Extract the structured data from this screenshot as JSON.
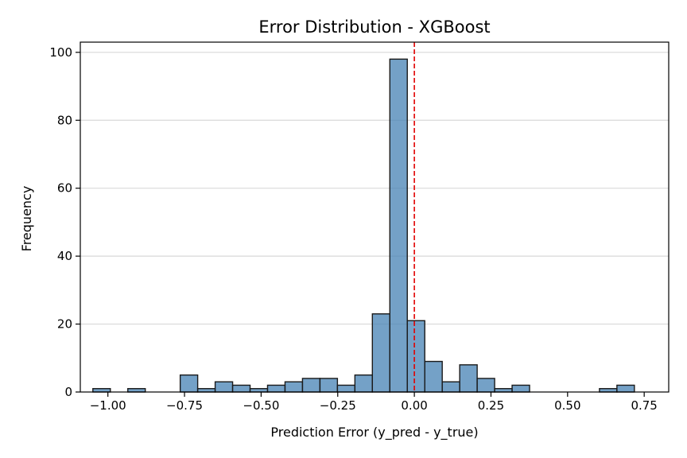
{
  "chart_data": {
    "type": "histogram",
    "title": "Error Distribution - XGBoost",
    "xlabel": "Prediction Error (y_pred - y_true)",
    "ylabel": "Frequency",
    "xlim": [
      -1.09,
      0.83
    ],
    "ylim": [
      0,
      103
    ],
    "grid": "y",
    "legend": "none",
    "bar_color": "#4682b4",
    "reference_line": {
      "x": 0.0,
      "color": "#e00000",
      "style": "dashed"
    },
    "bins": [
      {
        "x0": -1.049,
        "x1": -0.992,
        "count": 1
      },
      {
        "x0": -0.992,
        "x1": -0.935,
        "count": 0
      },
      {
        "x0": -0.935,
        "x1": -0.878,
        "count": 1
      },
      {
        "x0": -0.878,
        "x1": -0.821,
        "count": 0
      },
      {
        "x0": -0.821,
        "x1": -0.764,
        "count": 0
      },
      {
        "x0": -0.764,
        "x1": -0.707,
        "count": 5
      },
      {
        "x0": -0.707,
        "x1": -0.65,
        "count": 1
      },
      {
        "x0": -0.65,
        "x1": -0.593,
        "count": 3
      },
      {
        "x0": -0.593,
        "x1": -0.536,
        "count": 2
      },
      {
        "x0": -0.536,
        "x1": -0.479,
        "count": 1
      },
      {
        "x0": -0.479,
        "x1": -0.422,
        "count": 2
      },
      {
        "x0": -0.422,
        "x1": -0.365,
        "count": 3
      },
      {
        "x0": -0.365,
        "x1": -0.308,
        "count": 4
      },
      {
        "x0": -0.308,
        "x1": -0.251,
        "count": 4
      },
      {
        "x0": -0.251,
        "x1": -0.194,
        "count": 2
      },
      {
        "x0": -0.194,
        "x1": -0.137,
        "count": 5
      },
      {
        "x0": -0.137,
        "x1": -0.08,
        "count": 23
      },
      {
        "x0": -0.08,
        "x1": -0.023,
        "count": 98
      },
      {
        "x0": -0.023,
        "x1": 0.034,
        "count": 21
      },
      {
        "x0": 0.034,
        "x1": 0.091,
        "count": 9
      },
      {
        "x0": 0.091,
        "x1": 0.148,
        "count": 3
      },
      {
        "x0": 0.148,
        "x1": 0.205,
        "count": 8
      },
      {
        "x0": 0.205,
        "x1": 0.262,
        "count": 4
      },
      {
        "x0": 0.262,
        "x1": 0.319,
        "count": 1
      },
      {
        "x0": 0.319,
        "x1": 0.376,
        "count": 2
      },
      {
        "x0": 0.376,
        "x1": 0.433,
        "count": 0
      },
      {
        "x0": 0.433,
        "x1": 0.49,
        "count": 0
      },
      {
        "x0": 0.49,
        "x1": 0.547,
        "count": 0
      },
      {
        "x0": 0.547,
        "x1": 0.604,
        "count": 0
      },
      {
        "x0": 0.604,
        "x1": 0.661,
        "count": 1
      },
      {
        "x0": 0.661,
        "x1": 0.718,
        "count": 2
      }
    ],
    "x_ticks": [
      -1.0,
      -0.75,
      -0.5,
      -0.25,
      0.0,
      0.25,
      0.5,
      0.75
    ],
    "x_tick_labels": [
      "−1.00",
      "−0.75",
      "−0.50",
      "−0.25",
      "0.00",
      "0.25",
      "0.50",
      "0.75"
    ],
    "y_ticks": [
      0,
      20,
      40,
      60,
      80,
      100
    ],
    "y_tick_labels": [
      "0",
      "20",
      "40",
      "60",
      "80",
      "100"
    ]
  }
}
